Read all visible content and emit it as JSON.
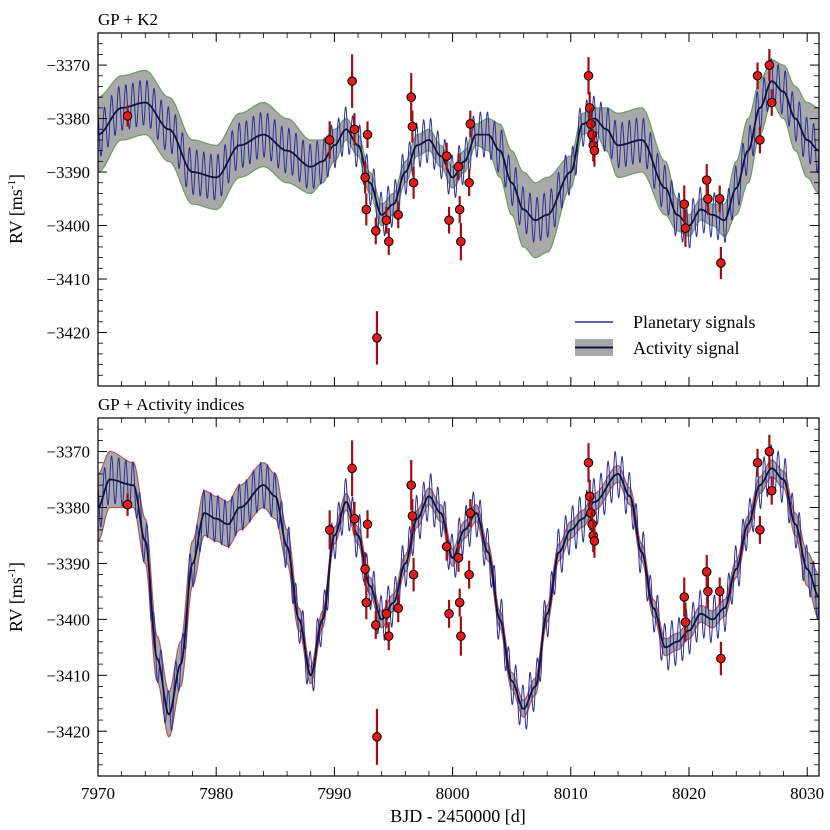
{
  "xlabel": "BJD - 2450000 [d]",
  "colors": {
    "planetary": "#2b2f9e",
    "activity_mean": "#0d1440",
    "band": "#a9a9a9",
    "band_edge_top": "#6b9b63",
    "band_edge_bottom": "#b5545a",
    "point_fill": "#e31b1b",
    "errorbar": "#a01010"
  },
  "chart_data": [
    {
      "type": "line",
      "title": "GP + K2",
      "ylabel": "RV [ms",
      "ylabel_sup": "-1",
      "ylabel_close": "]",
      "xlim": [
        7970,
        8031
      ],
      "ylim": [
        -3430,
        -3364
      ],
      "xticks": [
        7970,
        7980,
        7990,
        8000,
        8010,
        8020,
        8030
      ],
      "yticks": [
        -3370,
        -3380,
        -3390,
        -3400,
        -3410,
        -3420
      ],
      "legend": {
        "location": "lower-right",
        "entries": [
          "Planetary signals",
          "Activity signal"
        ]
      },
      "activity_model": {
        "x": [
          7970,
          7972,
          7974,
          7976,
          7978,
          7980,
          7982,
          7984,
          7986,
          7988,
          7989,
          7990,
          7991,
          7992,
          7993,
          7994,
          7995,
          7996,
          7997,
          7998,
          7999,
          8000,
          8001,
          8002,
          8003,
          8004,
          8005,
          8006,
          8007,
          8008,
          8010,
          8011,
          8012,
          8013,
          8014,
          8016,
          8018,
          8019,
          8020,
          8021,
          8022,
          8023,
          8024,
          8025,
          8026,
          8027,
          8028,
          8029,
          8030,
          8031
        ],
        "mean": [
          -3383,
          -3378,
          -3377,
          -3382,
          -3390,
          -3391,
          -3385,
          -3383,
          -3386,
          -3389,
          -3388,
          -3385,
          -3382,
          -3385,
          -3392,
          -3398,
          -3396,
          -3390,
          -3385,
          -3384,
          -3387,
          -3391,
          -3388,
          -3383,
          -3383,
          -3386,
          -3392,
          -3397,
          -3399,
          -3398,
          -3390,
          -3381,
          -3380,
          -3382,
          -3385,
          -3384,
          -3393,
          -3398,
          -3400,
          -3397,
          -3398,
          -3399,
          -3393,
          -3386,
          -3378,
          -3373,
          -3375,
          -3380,
          -3384,
          -3386
        ],
        "sigma": [
          7,
          6,
          6,
          6,
          6,
          6,
          6,
          6,
          6,
          5,
          4,
          3,
          2,
          2,
          2,
          2,
          2,
          2,
          2,
          2,
          2,
          2,
          2,
          2,
          3,
          5,
          6,
          7,
          7,
          7,
          3,
          2,
          2,
          4,
          6,
          6,
          5,
          3,
          2,
          2,
          2,
          3,
          5,
          6,
          5,
          4,
          5,
          6,
          7,
          8
        ]
      },
      "planetary_signal": {
        "period_days": 0.6,
        "amplitude_ms": 4.2
      },
      "rv_points": {
        "x": [
          7972.5,
          7989.6,
          7991.5,
          7991.7,
          7992.6,
          7992.7,
          7992.8,
          7993.5,
          7993.6,
          7994.4,
          7994.6,
          7995.4,
          7996.5,
          7996.6,
          7996.7,
          7999.5,
          7999.7,
          8000.5,
          8000.6,
          8000.7,
          8001.4,
          8001.5,
          8011.5,
          8011.6,
          8011.7,
          8011.8,
          8011.9,
          8012.0,
          8019.6,
          8019.7,
          8021.5,
          8021.6,
          8022.6,
          8022.7,
          8025.8,
          8026.0,
          8026.8,
          8027.0
        ],
        "y": [
          -3379.5,
          -3384,
          -3373,
          -3382,
          -3391,
          -3397,
          -3383,
          -3401,
          -3421,
          -3399,
          -3403,
          -3398,
          -3376,
          -3381.5,
          -3392,
          -3387,
          -3399,
          -3389,
          -3397,
          -3403,
          -3392,
          -3381,
          -3372,
          -3378,
          -3381,
          -3383,
          -3385,
          -3386,
          -3396,
          -3400.5,
          -3391.5,
          -3395,
          -3395,
          -3407,
          -3372,
          -3384,
          -3370,
          -3377
        ],
        "err": [
          2.0,
          3.5,
          5.0,
          3.0,
          3.0,
          3.0,
          2.5,
          2.5,
          5.0,
          2.5,
          2.5,
          2.5,
          4.5,
          3.0,
          3.0,
          2.5,
          2.5,
          2.5,
          2.5,
          3.5,
          2.5,
          2.5,
          3.5,
          3.0,
          3.0,
          3.0,
          3.0,
          3.0,
          3.5,
          3.5,
          3.0,
          3.0,
          2.5,
          3.0,
          2.5,
          2.5,
          3.0,
          2.5
        ]
      }
    },
    {
      "type": "line",
      "title": "GP + Activity indices",
      "ylabel": "RV [ms",
      "ylabel_sup": "-1",
      "ylabel_close": "]",
      "xlim": [
        7970,
        8031
      ],
      "ylim": [
        -3428,
        -3364
      ],
      "xticks": [
        7970,
        7980,
        7990,
        8000,
        8010,
        8020,
        8030
      ],
      "yticks": [
        -3370,
        -3380,
        -3390,
        -3400,
        -3410,
        -3420
      ],
      "activity_model": {
        "x": [
          7970,
          7971,
          7973,
          7974,
          7975,
          7976,
          7977,
          7978,
          7979,
          7980,
          7981,
          7982,
          7984,
          7985,
          7986,
          7987,
          7988,
          7989,
          7990,
          7991,
          7992,
          7993,
          7994,
          7995,
          7996,
          7997,
          7998,
          7999,
          8000,
          8001,
          8002,
          8003,
          8004,
          8005,
          8006,
          8007,
          8008,
          8009,
          8010,
          8011,
          8012,
          8014,
          8015,
          8016,
          8017,
          8018,
          8019,
          8020,
          8021,
          8022,
          8023,
          8024,
          8025,
          8026,
          8027,
          8028,
          8029,
          8030,
          8031
        ],
        "mean": [
          -3380,
          -3375,
          -3376,
          -3386,
          -3407,
          -3417,
          -3408,
          -3390,
          -3381,
          -3382,
          -3383,
          -3380,
          -3376,
          -3378,
          -3387,
          -3400,
          -3410,
          -3400,
          -3385,
          -3379,
          -3385,
          -3394,
          -3400,
          -3397,
          -3390,
          -3382,
          -3378,
          -3381,
          -3389,
          -3384,
          -3381,
          -3388,
          -3400,
          -3411,
          -3416,
          -3412,
          -3399,
          -3388,
          -3384,
          -3382,
          -3379,
          -3374,
          -3378,
          -3388,
          -3398,
          -3405,
          -3404,
          -3402,
          -3399,
          -3400,
          -3398,
          -3391,
          -3383,
          -3376,
          -3373,
          -3375,
          -3383,
          -3391,
          -3396
        ],
        "sigma": [
          6,
          5,
          4,
          4,
          4,
          4,
          4,
          4,
          4,
          4,
          4,
          4,
          4,
          4,
          3,
          2,
          1.5,
          1.5,
          1.5,
          1.5,
          1.5,
          1.5,
          1.5,
          1.5,
          1.5,
          1.5,
          1.5,
          1.5,
          1.5,
          1.5,
          1.5,
          1.5,
          1.5,
          1.5,
          1.5,
          1.5,
          1.5,
          1.5,
          1.5,
          1.5,
          1.5,
          1.5,
          1.5,
          1.5,
          1.5,
          1.5,
          1.5,
          1.5,
          1.5,
          1.5,
          1.5,
          1.5,
          1.5,
          1.5,
          1.5,
          1.5,
          2,
          3,
          4
        ]
      },
      "planetary_signal": {
        "period_days": 0.6,
        "amplitude_ms": 4.2
      },
      "rv_points": {
        "x": [
          7972.5,
          7989.6,
          7991.5,
          7991.7,
          7992.6,
          7992.7,
          7992.8,
          7993.5,
          7993.6,
          7994.4,
          7994.6,
          7995.4,
          7996.5,
          7996.6,
          7996.7,
          7999.5,
          7999.7,
          8000.5,
          8000.6,
          8000.7,
          8001.4,
          8001.5,
          8011.5,
          8011.6,
          8011.7,
          8011.8,
          8011.9,
          8012.0,
          8019.6,
          8019.7,
          8021.5,
          8021.6,
          8022.6,
          8022.7,
          8025.8,
          8026.0,
          8026.8,
          8027.0
        ],
        "y": [
          -3379.5,
          -3384,
          -3373,
          -3382,
          -3391,
          -3397,
          -3383,
          -3401,
          -3421,
          -3399,
          -3403,
          -3398,
          -3376,
          -3381.5,
          -3392,
          -3387,
          -3399,
          -3389,
          -3397,
          -3403,
          -3392,
          -3381,
          -3372,
          -3378,
          -3381,
          -3383,
          -3385,
          -3386,
          -3396,
          -3400.5,
          -3391.5,
          -3395,
          -3395,
          -3407,
          -3372,
          -3384,
          -3370,
          -3377
        ],
        "err": [
          2.0,
          3.5,
          5.0,
          3.0,
          3.0,
          3.0,
          2.5,
          2.5,
          5.0,
          2.5,
          2.5,
          2.5,
          4.5,
          3.0,
          3.0,
          2.5,
          2.5,
          2.5,
          2.5,
          3.5,
          2.5,
          2.5,
          3.5,
          3.0,
          3.0,
          3.0,
          3.0,
          3.0,
          3.5,
          3.5,
          3.0,
          3.0,
          2.5,
          3.0,
          2.5,
          2.5,
          3.0,
          2.5
        ]
      }
    }
  ]
}
